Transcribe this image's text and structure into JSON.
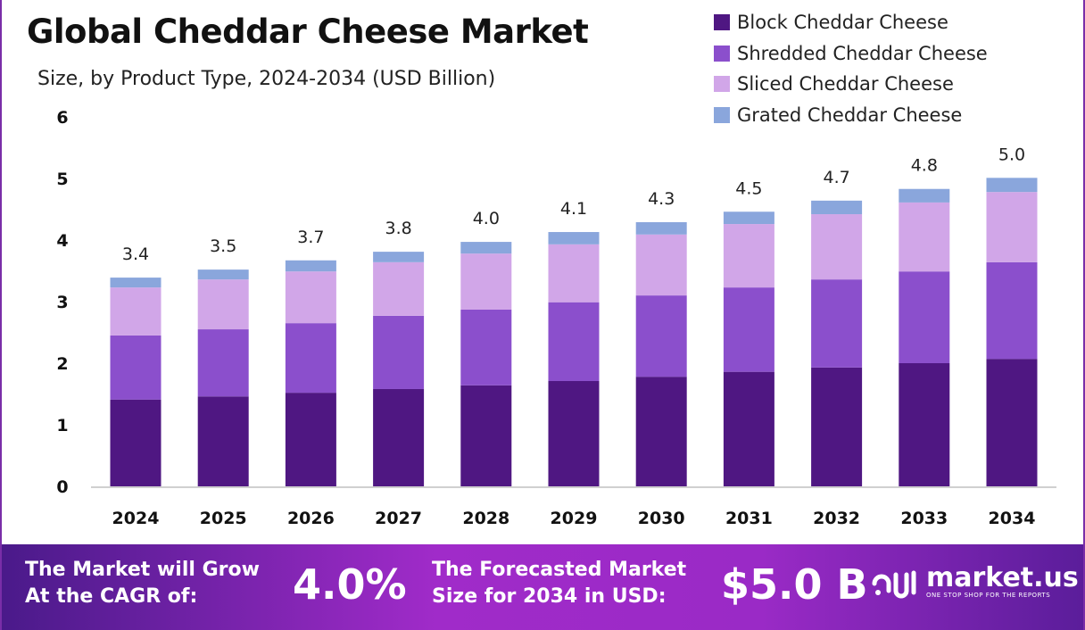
{
  "chart_data": {
    "type": "bar",
    "stacked": true,
    "title": "Global Cheddar Cheese Market",
    "subtitle": "Size, by Product Type, 2024-2034 (USD Billion)",
    "xlabel": "",
    "ylabel": "",
    "ylim": [
      0,
      6
    ],
    "yticks": [
      0,
      1,
      2,
      3,
      4,
      5,
      6
    ],
    "grid": false,
    "legend_position": "top-right",
    "categories": [
      "2024",
      "2025",
      "2026",
      "2027",
      "2028",
      "2029",
      "2030",
      "2031",
      "2032",
      "2033",
      "2034"
    ],
    "series": [
      {
        "name": "Block Cheddar Cheese",
        "color": "#4f1782",
        "values": [
          1.41,
          1.46,
          1.52,
          1.58,
          1.64,
          1.71,
          1.78,
          1.86,
          1.93,
          2.0,
          2.07
        ]
      },
      {
        "name": "Shredded Cheddar Cheese",
        "color": "#8b4fcc",
        "values": [
          1.04,
          1.09,
          1.13,
          1.19,
          1.23,
          1.28,
          1.32,
          1.37,
          1.43,
          1.49,
          1.57
        ]
      },
      {
        "name": "Sliced Cheddar Cheese",
        "color": "#d1a6e8",
        "values": [
          0.78,
          0.81,
          0.84,
          0.87,
          0.91,
          0.94,
          0.99,
          1.03,
          1.06,
          1.12,
          1.14
        ]
      },
      {
        "name": "Grated Cheddar Cheese",
        "color": "#8aa6dc",
        "values": [
          0.16,
          0.16,
          0.18,
          0.17,
          0.19,
          0.2,
          0.2,
          0.2,
          0.22,
          0.22,
          0.23
        ]
      }
    ],
    "totals_labels": [
      "3.4",
      "3.5",
      "3.7",
      "3.8",
      "4.0",
      "4.1",
      "4.3",
      "4.5",
      "4.7",
      "4.8",
      "5.0"
    ]
  },
  "banner": {
    "cagr_text_1": "The Market will Grow",
    "cagr_text_2": "At the CAGR of:",
    "cagr_value": "4.0%",
    "forecast_text_1": "The Forecasted Market",
    "forecast_text_2": "Size for 2034 in USD:",
    "forecast_value": "$5.0 B",
    "logo_text": "market.us",
    "logo_tagline": "ONE STOP SHOP FOR THE REPORTS"
  }
}
